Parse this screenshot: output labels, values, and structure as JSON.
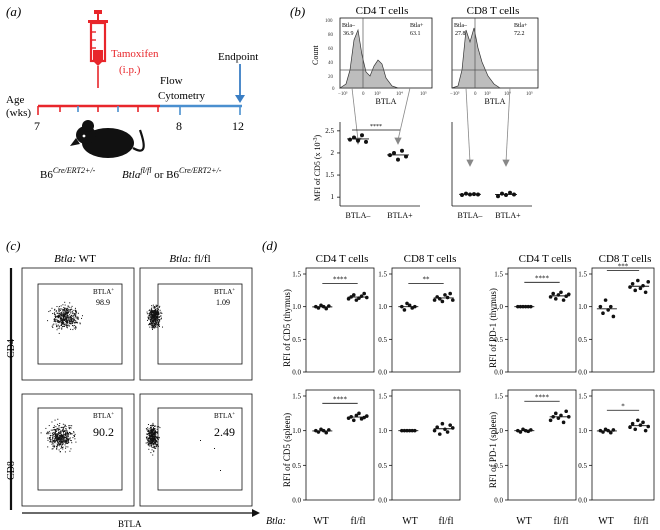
{
  "panel_a": {
    "label": "(a)",
    "tamoxifen": "Tamoxifen",
    "route": "(i.p.)",
    "flow": "Flow",
    "cytometry": "Cytometry",
    "endpoint": "Endpoint",
    "age": "Age",
    "wks": "(wks)",
    "tick7": "7",
    "tick8": "8",
    "tick12": "12",
    "geno1": "B6",
    "geno1_sup": "Cre/ERT2+/-",
    "geno2": "Btla",
    "geno2_sup": "fl/fl",
    "or": " or ",
    "geno3": "B6",
    "geno3_sup": "Cre/ERT2+/-",
    "colors": {
      "red": "#e8262b",
      "blue": "#4a8fcf",
      "arrow": "#3a7ec4"
    }
  },
  "panel_b": {
    "label": "(b)",
    "cd4_title": "CD4 T cells",
    "cd8_title": "CD8 T cells",
    "count_label": "Count",
    "btla_label": "BTLA",
    "cd4_neg_label": "Btla–",
    "cd4_neg_val": "36.9",
    "cd4_pos_label": "Btla+",
    "cd4_pos_val": "63.1",
    "cd8_neg_label": "Btla–",
    "cd8_neg_val": "27.8",
    "cd8_pos_label": "Btla+",
    "cd8_pos_val": "72.2",
    "mfi_label": "MFI of CD5 (x 10",
    "mfi_exp": "-3",
    "mfi_close": ")",
    "yticks": [
      "2.5",
      "2",
      "1.5",
      "1"
    ],
    "xneg": "BTLA–",
    "xpos": "BTLA+",
    "sig": "****",
    "chart_data": {
      "type": "scatter",
      "title": "MFI of CD5",
      "ylabel": "MFI of CD5 (x 10^-3)",
      "ylim": [
        0.8,
        2.7
      ],
      "series": [
        {
          "name": "CD4 BTLA-",
          "values": [
            2.3,
            2.35,
            2.28,
            2.4,
            2.25
          ]
        },
        {
          "name": "CD4 BTLA+",
          "values": [
            1.95,
            2.0,
            1.85,
            2.05,
            1.92
          ]
        },
        {
          "name": "CD8 BTLA-",
          "values": [
            1.05,
            1.08,
            1.06,
            1.07,
            1.06
          ]
        },
        {
          "name": "CD8 BTLA+",
          "values": [
            1.02,
            1.08,
            1.05,
            1.1,
            1.06
          ]
        }
      ]
    }
  },
  "panel_c": {
    "label": "(c)",
    "col1_title_it": "Btla:",
    "col1_title": " WT",
    "col2_title_it": "Btla:",
    "col2_title": " fl/fl",
    "cd4": "CD4",
    "cd8": "CD8",
    "btla": "BTLA",
    "gate_label": "BTLA",
    "gate_sup": "+",
    "v_cd4_wt": "98.9",
    "v_cd4_fl": "1.09",
    "v_cd8_wt": "90.2",
    "v_cd8_fl": "2.49"
  },
  "panel_d": {
    "label": "(d)",
    "t_cd4_a": "CD4 T cells",
    "t_cd8_a": "CD8 T cells",
    "t_cd4_b": "CD4 T cells",
    "t_cd8_b": "CD8 T cells",
    "y_cd5_thy": "RFI of CD5 (thymus)",
    "y_pd1_thy": "RFI of PD-1 (thymus)",
    "y_cd5_spl": "RFI of CD5 (spleen)",
    "y_pd1_spl": "RFI of PD-1 (spleen)",
    "yticks": [
      "1.5",
      "1.0",
      "0.5",
      "0.0"
    ],
    "btla_row_label": "Btla:",
    "wt": "WT",
    "flfl": "fl/fl",
    "chart_data": [
      {
        "type": "scatter",
        "title": "CD4 T cells",
        "ylabel": "RFI of CD5 (thymus)",
        "ylim": [
          0,
          1.5
        ],
        "categories": [
          "WT",
          "fl/fl"
        ],
        "sig": "****",
        "series": [
          {
            "name": "WT",
            "values": [
              1.0,
              0.98,
              1.02,
              1.0,
              0.97,
              1.01
            ]
          },
          {
            "name": "fl/fl",
            "values": [
              1.12,
              1.15,
              1.18,
              1.1,
              1.13,
              1.16,
              1.2,
              1.14
            ]
          }
        ]
      },
      {
        "type": "scatter",
        "title": "CD8 T cells",
        "ylabel": "RFI of CD5 (thymus)",
        "ylim": [
          0,
          1.5
        ],
        "categories": [
          "WT",
          "fl/fl"
        ],
        "sig": "**",
        "series": [
          {
            "name": "WT",
            "values": [
              1.0,
              0.95,
              1.05,
              1.02,
              0.98,
              1.0
            ]
          },
          {
            "name": "fl/fl",
            "values": [
              1.1,
              1.15,
              1.12,
              1.08,
              1.18,
              1.14,
              1.2,
              1.1
            ]
          }
        ]
      },
      {
        "type": "scatter",
        "title": "CD4 T cells",
        "ylabel": "RFI of PD-1 (thymus)",
        "ylim": [
          0,
          1.5
        ],
        "categories": [
          "WT",
          "fl/fl"
        ],
        "sig": "****",
        "series": [
          {
            "name": "WT",
            "values": [
              1.0,
              1.0,
              1.0,
              1.0,
              1.0,
              1.0
            ]
          },
          {
            "name": "fl/fl",
            "values": [
              1.15,
              1.2,
              1.12,
              1.18,
              1.22,
              1.1,
              1.16,
              1.19
            ]
          }
        ]
      },
      {
        "type": "scatter",
        "title": "CD8 T cells",
        "ylabel": "RFI of PD-1 (thymus)",
        "ylim": [
          0,
          1.5
        ],
        "categories": [
          "WT",
          "fl/fl"
        ],
        "sig": "***",
        "series": [
          {
            "name": "WT",
            "values": [
              1.0,
              0.9,
              1.1,
              0.95,
              1.0,
              0.85
            ]
          },
          {
            "name": "fl/fl",
            "values": [
              1.3,
              1.35,
              1.25,
              1.4,
              1.28,
              1.32,
              1.22,
              1.38
            ]
          }
        ]
      },
      {
        "type": "scatter",
        "title": "CD4 T cells",
        "ylabel": "RFI of CD5 (spleen)",
        "ylim": [
          0,
          1.5
        ],
        "categories": [
          "WT",
          "fl/fl"
        ],
        "sig": "****",
        "series": [
          {
            "name": "WT",
            "values": [
              1.0,
              0.98,
              1.02,
              1.0,
              0.97,
              1.01
            ]
          },
          {
            "name": "fl/fl",
            "values": [
              1.18,
              1.2,
              1.15,
              1.22,
              1.25,
              1.17,
              1.19,
              1.21
            ]
          }
        ]
      },
      {
        "type": "scatter",
        "title": "CD8 T cells",
        "ylabel": "RFI of CD5 (spleen)",
        "ylim": [
          0,
          1.5
        ],
        "categories": [
          "WT",
          "fl/fl"
        ],
        "sig": "",
        "series": [
          {
            "name": "WT",
            "values": [
              1.0,
              1.0,
              1.0,
              1.0,
              1.0,
              1.0
            ]
          },
          {
            "name": "fl/fl",
            "values": [
              1.0,
              1.05,
              0.95,
              1.1,
              1.02,
              0.98,
              1.08,
              1.04
            ]
          }
        ]
      },
      {
        "type": "scatter",
        "title": "CD4 T cells",
        "ylabel": "RFI of PD-1 (spleen)",
        "ylim": [
          0,
          1.5
        ],
        "categories": [
          "WT",
          "fl/fl"
        ],
        "sig": "****",
        "series": [
          {
            "name": "WT",
            "values": [
              1.0,
              0.98,
              1.02,
              1.0,
              0.99,
              1.01
            ]
          },
          {
            "name": "fl/fl",
            "values": [
              1.15,
              1.2,
              1.25,
              1.18,
              1.22,
              1.12,
              1.28,
              1.2
            ]
          }
        ]
      },
      {
        "type": "scatter",
        "title": "CD8 T cells",
        "ylabel": "RFI of PD-1 (spleen)",
        "ylim": [
          0,
          1.5
        ],
        "categories": [
          "WT",
          "fl/fl"
        ],
        "sig": "*",
        "series": [
          {
            "name": "WT",
            "values": [
              1.0,
              0.98,
              1.02,
              1.0,
              0.97,
              1.01
            ]
          },
          {
            "name": "fl/fl",
            "values": [
              1.05,
              1.1,
              1.02,
              1.15,
              1.08,
              1.12,
              1.0,
              1.06
            ]
          }
        ]
      }
    ]
  }
}
